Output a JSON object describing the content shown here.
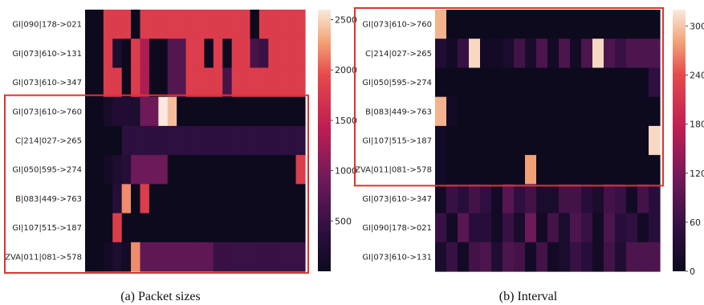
{
  "chart_data": [
    {
      "type": "heatmap",
      "caption": "(a) Packet sizes",
      "rows": [
        "GI|090|178->021",
        "GI|073|610->131",
        "GI|073|610->347",
        "GI|073|610->760",
        "C|214|027->265",
        "GI|050|595->274",
        "B|083|449->763",
        "GI|107|515->187",
        "ZVA|011|081->578"
      ],
      "ncols": 24,
      "values": [
        [
          0,
          0,
          1800,
          1800,
          1800,
          0,
          1800,
          1800,
          1800,
          1800,
          1800,
          1800,
          1800,
          1800,
          1800,
          1800,
          1800,
          1800,
          0,
          1800,
          1800,
          1800,
          1800,
          1800
        ],
        [
          0,
          0,
          1800,
          200,
          0,
          1800,
          1300,
          0,
          0,
          700,
          700,
          1800,
          1800,
          0,
          1800,
          0,
          1800,
          1800,
          600,
          500,
          1800,
          1800,
          1800,
          1800
        ],
        [
          0,
          0,
          1800,
          1800,
          0,
          1800,
          1300,
          0,
          0,
          700,
          700,
          1800,
          1800,
          1800,
          1800,
          600,
          1800,
          1800,
          1800,
          1800,
          1800,
          1800,
          1800,
          1800
        ],
        [
          0,
          0,
          150,
          250,
          250,
          200,
          900,
          900,
          2600,
          2400,
          0,
          0,
          0,
          0,
          0,
          0,
          0,
          0,
          0,
          0,
          0,
          0,
          0,
          0
        ],
        [
          0,
          0,
          0,
          0,
          400,
          400,
          400,
          400,
          400,
          400,
          400,
          400,
          400,
          400,
          400,
          400,
          400,
          400,
          400,
          400,
          400,
          400,
          400,
          400
        ],
        [
          0,
          0,
          100,
          200,
          300,
          900,
          900,
          900,
          900,
          0,
          0,
          0,
          0,
          0,
          0,
          0,
          0,
          0,
          0,
          0,
          0,
          0,
          0,
          1800
        ],
        [
          0,
          0,
          0,
          300,
          2200,
          0,
          1800,
          0,
          0,
          0,
          0,
          0,
          0,
          0,
          0,
          0,
          0,
          0,
          0,
          0,
          0,
          0,
          0,
          0
        ],
        [
          0,
          0,
          0,
          1800,
          0,
          0,
          0,
          0,
          0,
          0,
          0,
          0,
          0,
          0,
          0,
          0,
          0,
          0,
          0,
          0,
          0,
          0,
          0,
          0
        ],
        [
          0,
          0,
          100,
          200,
          100,
          2200,
          800,
          800,
          800,
          800,
          800,
          800,
          800,
          800,
          500,
          500,
          500,
          500,
          500,
          500,
          500,
          500,
          500,
          500
        ]
      ],
      "colorbar": {
        "vmin": 0,
        "vmax": 2600,
        "ticks": [
          500,
          1000,
          1500,
          2000,
          2500
        ]
      },
      "highlight": {
        "row_start": 3,
        "row_end": 8
      }
    },
    {
      "type": "heatmap",
      "caption": "(b) Interval",
      "rows": [
        "GI|073|610->760",
        "C|214|027->265",
        "GI|050|595->274",
        "B|083|449->763",
        "GI|107|515->187",
        "ZVA|011|081->578",
        "GI|073|610->347",
        "GI|090|178->021",
        "GI|073|610->131"
      ],
      "ncols": 20,
      "values": [
        [
          290,
          0,
          0,
          0,
          0,
          0,
          0,
          0,
          0,
          0,
          0,
          0,
          0,
          0,
          0,
          0,
          0,
          0,
          0,
          0
        ],
        [
          30,
          10,
          60,
          310,
          10,
          10,
          20,
          70,
          20,
          80,
          10,
          80,
          10,
          80,
          310,
          80,
          60,
          80,
          80,
          80
        ],
        [
          0,
          0,
          0,
          0,
          0,
          0,
          0,
          0,
          0,
          0,
          0,
          0,
          0,
          0,
          0,
          0,
          0,
          0,
          0,
          50
        ],
        [
          290,
          10,
          0,
          0,
          0,
          0,
          0,
          0,
          0,
          0,
          0,
          0,
          0,
          0,
          0,
          0,
          0,
          0,
          0,
          0
        ],
        [
          10,
          0,
          0,
          0,
          0,
          0,
          0,
          0,
          0,
          0,
          0,
          0,
          0,
          0,
          0,
          0,
          0,
          0,
          0,
          310
        ],
        [
          10,
          0,
          0,
          0,
          0,
          0,
          0,
          0,
          280,
          0,
          0,
          0,
          0,
          0,
          0,
          0,
          0,
          0,
          0,
          0
        ],
        [
          10,
          60,
          40,
          70,
          50,
          10,
          90,
          50,
          70,
          20,
          20,
          70,
          70,
          40,
          20,
          70,
          60,
          10,
          70,
          40
        ],
        [
          60,
          10,
          90,
          40,
          40,
          10,
          60,
          20,
          110,
          10,
          70,
          20,
          80,
          60,
          10,
          80,
          40,
          50,
          10,
          40
        ],
        [
          20,
          60,
          10,
          70,
          80,
          30,
          80,
          70,
          10,
          70,
          10,
          20,
          60,
          40,
          10,
          70,
          30,
          80,
          80,
          80
        ]
      ],
      "colorbar": {
        "vmin": 0,
        "vmax": 320,
        "ticks": [
          0,
          60,
          120,
          180,
          240,
          300
        ]
      },
      "highlight": {
        "row_start": 0,
        "row_end": 5
      }
    }
  ],
  "colors": {
    "highlight": "#e0322e",
    "caption": "#111111"
  }
}
